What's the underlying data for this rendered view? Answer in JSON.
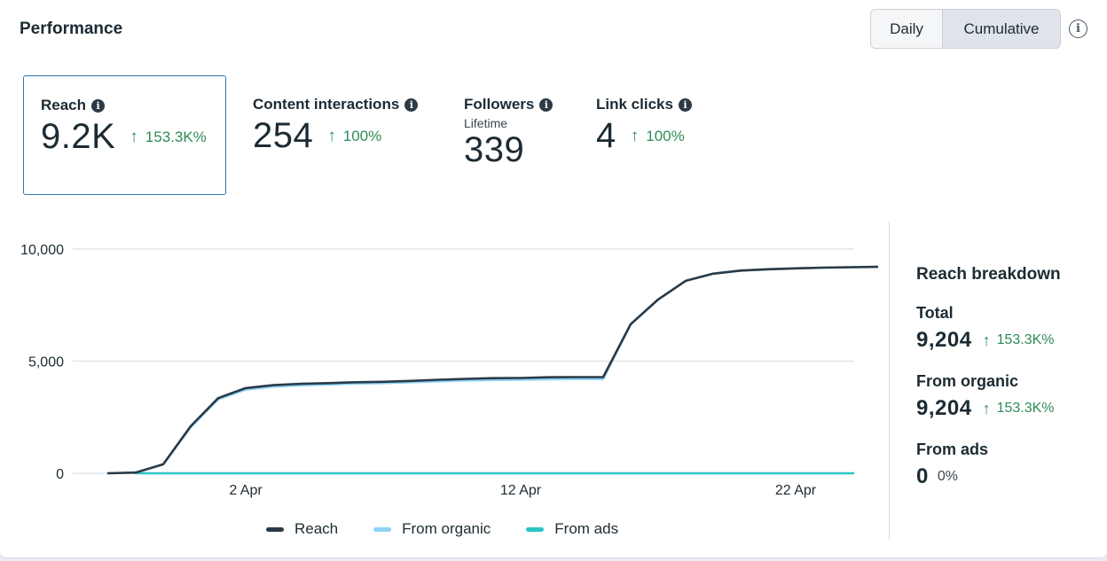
{
  "header": {
    "title": "Performance",
    "toggle": {
      "daily_label": "Daily",
      "cumulative_label": "Cumulative",
      "selected": "Cumulative"
    }
  },
  "metrics": [
    {
      "label": "Reach",
      "value": "9.2K",
      "change": "153.3K%",
      "selected": true
    },
    {
      "label": "Content interactions",
      "value": "254",
      "change": "100%"
    },
    {
      "label": "Followers",
      "sublabel": "Lifetime",
      "value": "339"
    },
    {
      "label": "Link clicks",
      "value": "4",
      "change": "100%"
    }
  ],
  "chart_data": {
    "type": "line",
    "title": "",
    "xlabel": "",
    "ylabel": "",
    "ylim": [
      0,
      10000
    ],
    "y_ticks": [
      "10,000",
      "5,000",
      "0"
    ],
    "y_tick_values": [
      10000,
      5000,
      0
    ],
    "x_tick_labels": [
      "2 Apr",
      "12 Apr",
      "22 Apr"
    ],
    "x_tick_days": [
      2,
      12,
      22
    ],
    "x": [
      -3,
      -2,
      -1,
      0,
      1,
      2,
      3,
      4,
      5,
      6,
      7,
      8,
      9,
      10,
      11,
      12,
      13,
      14,
      15,
      16,
      17,
      18,
      19,
      20,
      21,
      22,
      23,
      24,
      25
    ],
    "series": [
      {
        "name": "Reach",
        "color": "#2a3a47",
        "values": [
          0,
          30,
          400,
          2100,
          3350,
          3800,
          3930,
          3990,
          4020,
          4060,
          4080,
          4120,
          4170,
          4210,
          4240,
          4250,
          4280,
          4290,
          4290,
          6650,
          7750,
          8580,
          8900,
          9040,
          9100,
          9140,
          9170,
          9190,
          9204
        ]
      },
      {
        "name": "From organic",
        "color": "#8fd3f5",
        "values": [
          0,
          30,
          400,
          2050,
          3300,
          3730,
          3860,
          3920,
          3960,
          4000,
          4020,
          4060,
          4100,
          4140,
          4160,
          4170,
          4190,
          4200,
          4200,
          6650,
          7750,
          8580,
          8900,
          9040,
          9100,
          9140,
          9170,
          9190,
          9204
        ]
      },
      {
        "name": "From ads",
        "color": "#2cc5c5",
        "values": [
          0,
          0,
          0,
          0,
          0,
          0,
          0,
          0,
          0,
          0,
          0,
          0,
          0,
          0,
          0,
          0,
          0,
          0,
          0,
          0,
          0,
          0,
          0,
          0,
          0,
          0,
          0,
          0,
          0
        ]
      }
    ]
  },
  "breakdown": {
    "title": "Reach breakdown",
    "items": [
      {
        "label": "Total",
        "value": "9,204",
        "change": "153.3K%",
        "positive": true
      },
      {
        "label": "From organic",
        "value": "9,204",
        "change": "153.3K%",
        "positive": true
      },
      {
        "label": "From ads",
        "value": "0",
        "change": "0%",
        "positive": false
      }
    ]
  },
  "colors": {
    "positive": "#2e8b57",
    "selected_border": "#2a79b5",
    "text": "#1c2b33"
  }
}
